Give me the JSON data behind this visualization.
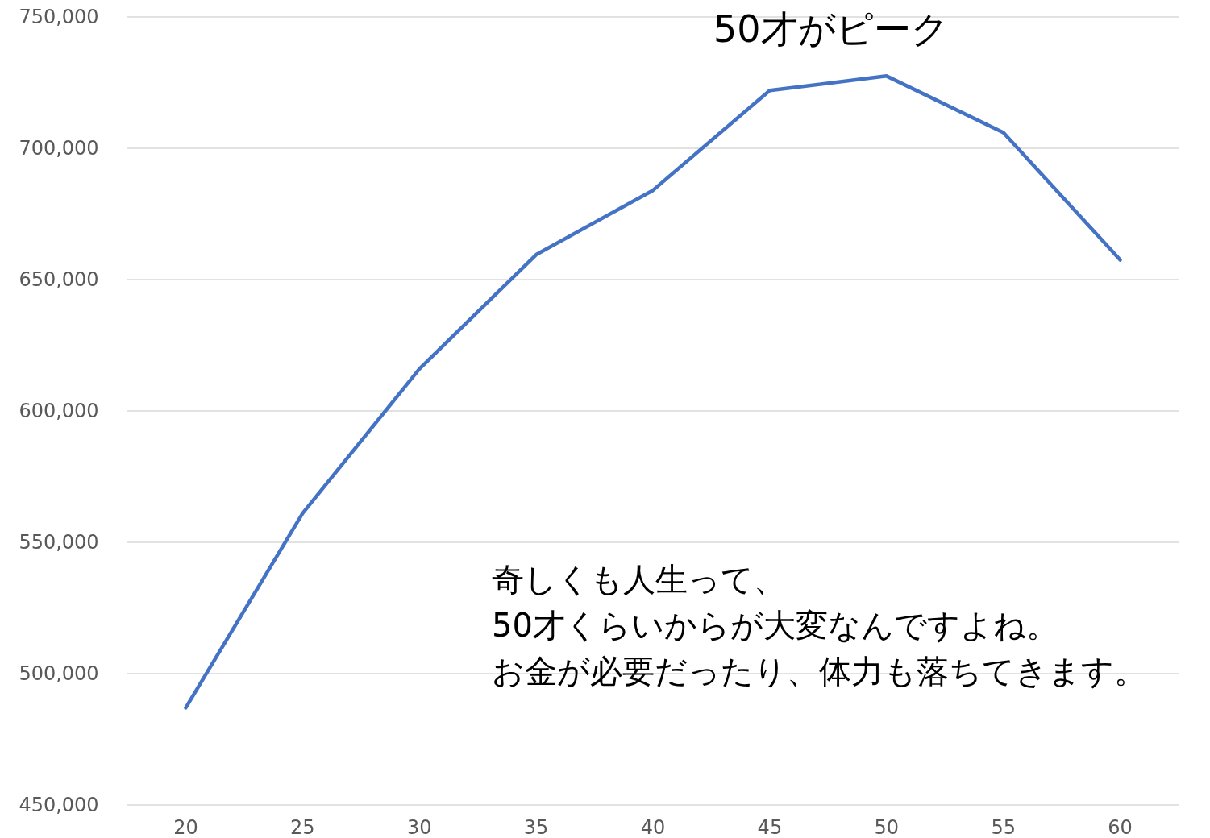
{
  "chart_data": {
    "type": "line",
    "categories": [
      "20",
      "25",
      "30",
      "35",
      "40",
      "45",
      "50",
      "55",
      "60"
    ],
    "series": [
      {
        "color": "#4472c4",
        "values": [
          487000,
          561000,
          616000,
          659500,
          684000,
          722000,
          727500,
          706000,
          657500
        ]
      }
    ],
    "ylim": [
      450000,
      750000
    ],
    "yticks": [
      {
        "value": 450000,
        "label": "450,000"
      },
      {
        "value": 500000,
        "label": "500,000"
      },
      {
        "value": 550000,
        "label": "550,000"
      },
      {
        "value": 600000,
        "label": "600,000"
      },
      {
        "value": 650000,
        "label": "650,000"
      },
      {
        "value": 700000,
        "label": "700,000"
      },
      {
        "value": 750000,
        "label": "750,000"
      }
    ],
    "grid": "y",
    "marker": "none",
    "line_style": "solid",
    "annotations": [
      "50才がピーク",
      "奇しくも人生って、",
      "50才くらいからが大変なんですよね。",
      "お金が必要だったり、体力も落ちてきます。"
    ]
  }
}
